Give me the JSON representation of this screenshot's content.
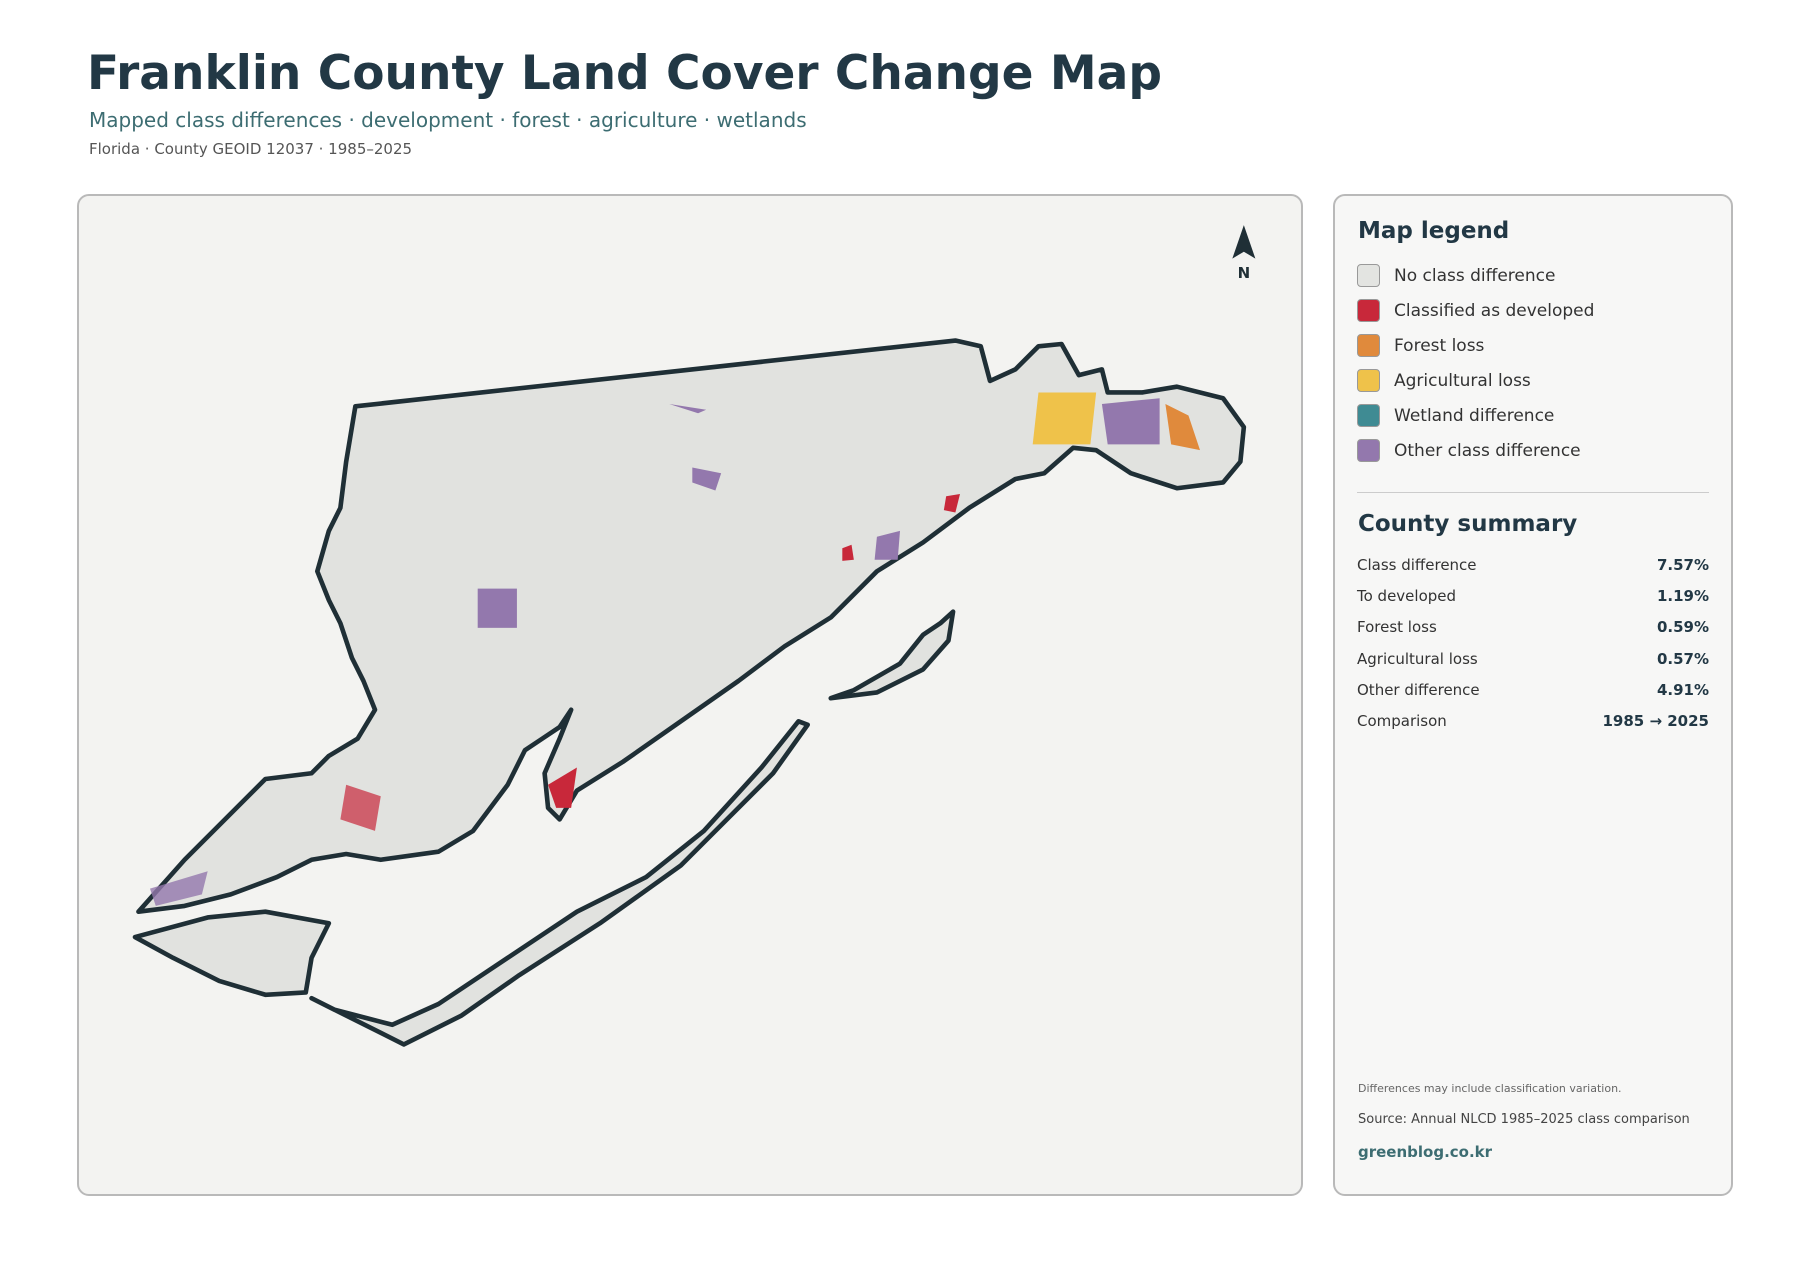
{
  "header": {
    "title": "Franklin County Land Cover Change Map",
    "subtitle": "Mapped class differences · development · forest · agriculture · wetlands",
    "meta": "Florida · County GEOID 12037 · 1985–2025"
  },
  "map": {
    "north_label": "N"
  },
  "legend": {
    "title": "Map legend",
    "items": [
      {
        "label": "No class difference",
        "color": "#e3e4e1"
      },
      {
        "label": "Classified as developed",
        "color": "#c8283a"
      },
      {
        "label": "Forest loss",
        "color": "#e08a3c"
      },
      {
        "label": "Agricultural loss",
        "color": "#efc24a"
      },
      {
        "label": "Wetland difference",
        "color": "#3f8b93"
      },
      {
        "label": "Other class difference",
        "color": "#9378ad"
      }
    ]
  },
  "summary": {
    "title": "County summary",
    "rows": [
      {
        "label": "Class difference",
        "value": "7.57%"
      },
      {
        "label": "To developed",
        "value": "1.19%"
      },
      {
        "label": "Forest loss",
        "value": "0.59%"
      },
      {
        "label": "Agricultural loss",
        "value": "0.57%"
      },
      {
        "label": "Other difference",
        "value": "4.91%"
      },
      {
        "label": "Comparison",
        "value": "1985 → 2025"
      }
    ]
  },
  "footer": {
    "note": "Differences may include classification variation.",
    "source": "Source: Annual NLCD 1985–2025 class comparison",
    "site": "greenblog.co.kr"
  }
}
